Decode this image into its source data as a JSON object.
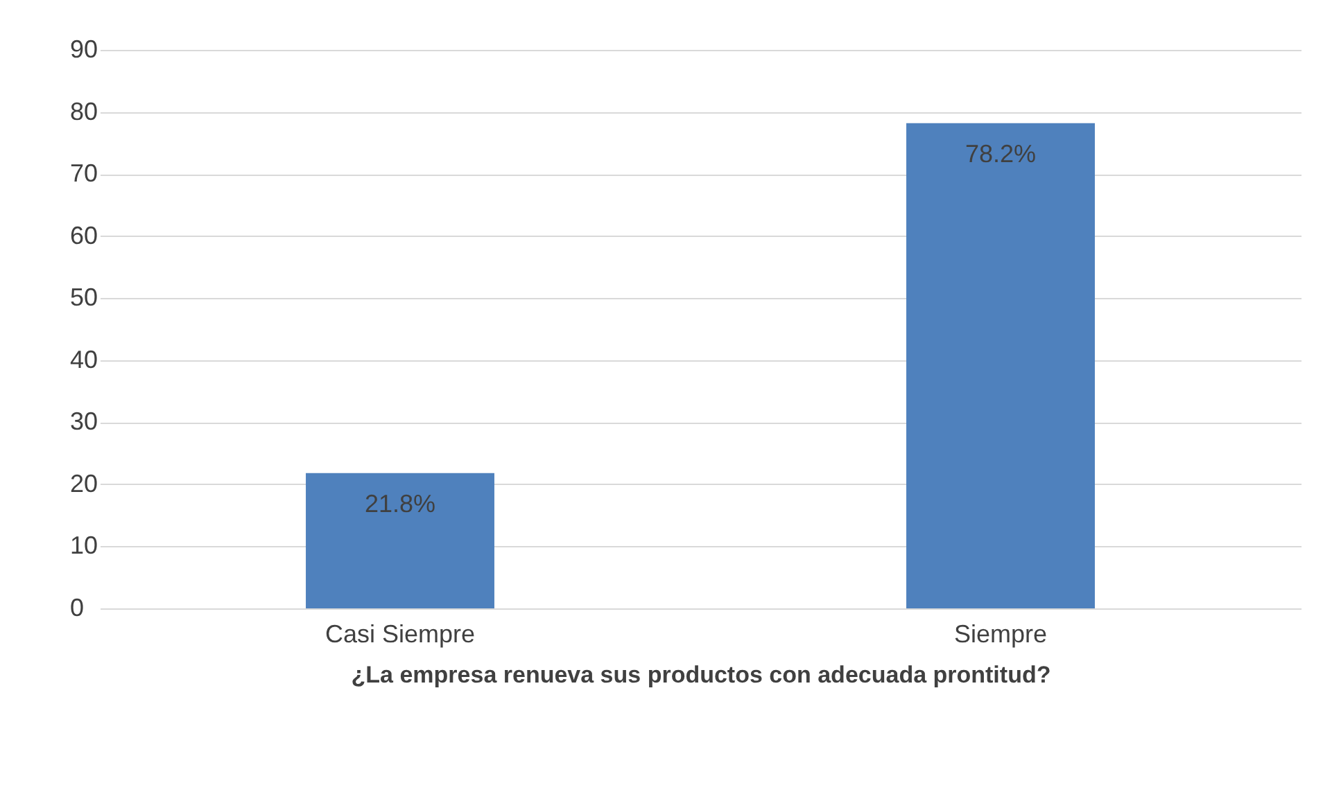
{
  "chart_data": {
    "type": "bar",
    "xlabel": "¿La empresa renueva sus productos con adecuada prontitud?",
    "categories": [
      "Casi Siempre",
      "Siempre"
    ],
    "values": [
      21.8,
      78.2
    ],
    "value_labels": [
      "21.8%",
      "78.2%"
    ],
    "color": "#4f81bd",
    "ylim": [
      0,
      90
    ],
    "yticks": [
      0,
      10,
      20,
      30,
      40,
      50,
      60,
      70,
      80,
      90
    ],
    "grid": "y"
  }
}
